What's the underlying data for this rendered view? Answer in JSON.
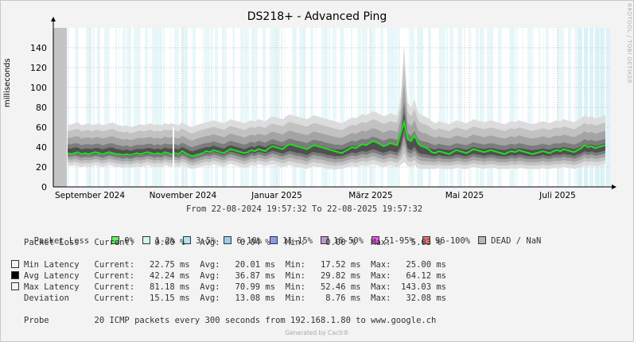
{
  "title": "DS218+ - Advanced Ping",
  "watermark": "RRDTOOL / TOBI OETIKER",
  "footer": "Generated by Cacti®",
  "date_range": "From 22-08-2024 19:57:32 To 22-08-2025 19:57:32",
  "chart_data": {
    "type": "area",
    "ylabel": "milliseconds",
    "ylim": [
      0,
      160
    ],
    "yticks": [
      0,
      20,
      40,
      60,
      80,
      100,
      120,
      140
    ],
    "xticks": [
      "September 2024",
      "November 2024",
      "Januar 2025",
      "März 2025",
      "Mai 2025",
      "Juli 2025"
    ],
    "grid": true,
    "series": [
      {
        "name": "Avg Latency",
        "color": "#22dd22",
        "values": [
          34,
          33,
          34,
          35,
          33,
          34,
          33,
          34,
          35,
          34,
          33,
          34,
          35,
          34,
          33,
          33,
          32,
          33,
          32,
          33,
          34,
          33,
          34,
          35,
          34,
          33,
          34,
          33,
          35,
          34,
          33,
          34,
          33,
          36,
          34,
          32,
          31,
          32,
          33,
          34,
          36,
          35,
          37,
          36,
          35,
          34,
          36,
          38,
          37,
          36,
          35,
          34,
          35,
          37,
          36,
          38,
          37,
          36,
          39,
          41,
          40,
          39,
          38,
          41,
          43,
          42,
          41,
          40,
          39,
          38,
          40,
          42,
          41,
          40,
          39,
          38,
          37,
          36,
          35,
          34,
          36,
          38,
          40,
          39,
          41,
          43,
          42,
          44,
          46,
          45,
          43,
          41,
          42,
          44,
          43,
          42,
          54,
          65,
          48,
          46,
          52,
          44,
          41,
          40,
          38,
          35,
          34,
          36,
          35,
          34,
          33,
          35,
          37,
          36,
          35,
          34,
          36,
          38,
          37,
          36,
          35,
          36,
          37,
          36,
          35,
          34,
          33,
          35,
          36,
          35,
          37,
          36,
          35,
          34,
          33,
          34,
          35,
          36,
          35,
          34,
          36,
          37,
          36,
          38,
          37,
          36,
          35,
          37,
          39,
          42,
          40,
          41,
          39,
          40,
          41,
          42
        ]
      },
      {
        "name": "Max Latency",
        "color": "#111111",
        "values": [
          62,
          63,
          64,
          65,
          62,
          63,
          64,
          62,
          63,
          64,
          62,
          63,
          64,
          65,
          63,
          62,
          61,
          62,
          60,
          61,
          62,
          63,
          62,
          63,
          64,
          62,
          63,
          62,
          64,
          63,
          64,
          63,
          62,
          65,
          63,
          61,
          60,
          62,
          63,
          64,
          65,
          66,
          67,
          66,
          65,
          64,
          66,
          68,
          67,
          66,
          65,
          64,
          66,
          67,
          66,
          68,
          67,
          66,
          69,
          71,
          70,
          69,
          68,
          71,
          73,
          72,
          71,
          70,
          69,
          68,
          70,
          72,
          71,
          70,
          69,
          68,
          67,
          66,
          65,
          64,
          66,
          68,
          70,
          69,
          71,
          73,
          72,
          74,
          76,
          75,
          73,
          71,
          72,
          74,
          73,
          72,
          90,
          143,
          85,
          80,
          88,
          75,
          72,
          71,
          69,
          66,
          64,
          66,
          65,
          64,
          63,
          65,
          67,
          66,
          65,
          64,
          66,
          68,
          67,
          66,
          65,
          66,
          67,
          66,
          65,
          64,
          63,
          65,
          66,
          65,
          67,
          66,
          65,
          64,
          63,
          64,
          65,
          66,
          65,
          64,
          66,
          67,
          66,
          68,
          67,
          66,
          65,
          67,
          69,
          72,
          70,
          71,
          69,
          70,
          71,
          72
        ]
      },
      {
        "name": "Min Latency",
        "color": "#dddddd",
        "values": [
          22,
          21,
          22,
          21,
          20,
          21,
          20,
          21,
          22,
          21,
          20,
          21,
          22,
          21,
          20,
          20,
          19,
          20,
          19,
          20,
          21,
          20,
          21,
          22,
          21,
          20,
          21,
          20,
          22,
          21,
          20,
          21,
          20,
          22,
          21,
          19,
          18,
          19,
          20,
          21,
          22,
          21,
          23,
          22,
          21,
          20,
          22,
          23,
          22,
          21,
          20,
          19,
          20,
          22,
          21,
          23,
          22,
          21,
          22,
          23,
          22,
          21,
          20,
          21,
          22,
          21,
          20,
          20,
          19,
          18,
          20,
          21,
          20,
          20,
          19,
          18,
          18,
          17,
          18,
          18,
          19,
          20,
          21,
          20,
          21,
          22,
          21,
          22,
          23,
          22,
          21,
          20,
          21,
          22,
          21,
          20,
          22,
          25,
          21,
          20,
          22,
          19,
          18,
          18,
          18,
          18,
          18,
          19,
          18,
          18,
          18,
          18,
          19,
          19,
          18,
          18,
          19,
          20,
          19,
          19,
          18,
          19,
          19,
          19,
          18,
          18,
          18,
          18,
          19,
          18,
          19,
          19,
          18,
          18,
          18,
          18,
          18,
          19,
          18,
          18,
          19,
          19,
          19,
          20,
          19,
          19,
          18,
          19,
          20,
          22,
          21,
          22,
          21,
          21,
          22,
          23
        ]
      }
    ]
  },
  "legend": {
    "packet_loss_label": "Packet Loss",
    "buckets": [
      {
        "label": "0%",
        "color": "#66ee66"
      },
      {
        "label": "1-2%",
        "color": "#ccf5f5"
      },
      {
        "label": "3-5%",
        "color": "#a8e8ee"
      },
      {
        "label": "6-10%",
        "color": "#99ccee"
      },
      {
        "label": "11-15%",
        "color": "#8899ee"
      },
      {
        "label": "16-50%",
        "color": "#bb99cc"
      },
      {
        "label": "51-95%",
        "color": "#ee55ee"
      },
      {
        "label": "96-100%",
        "color": "#ee7777"
      },
      {
        "label": "DEAD / NaN",
        "color": "#b0b8b0"
      }
    ],
    "packet_loss_row": "Packet Loss   Current:    0.00 %   Avg:    0.04 %   Min:    0.00 %   Max:    5.03 %",
    "rows": [
      {
        "swatch": "#f4f4f4",
        "text": "Min Latency   Current:   22.75 ms  Avg:   20.01 ms  Min:   17.52 ms  Max:   25.00 ms"
      },
      {
        "swatch": "#000000",
        "text": "Avg Latency   Current:   42.24 ms  Avg:   36.87 ms  Min:   29.82 ms  Max:   64.12 ms"
      },
      {
        "swatch": "#f4f4f4",
        "text": "Max Latency   Current:   81.18 ms  Avg:   70.99 ms  Min:   52.46 ms  Max:  143.03 ms"
      },
      {
        "swatch": null,
        "text": "Deviation     Current:   15.15 ms  Avg:   13.08 ms  Min:    8.76 ms  Max:   32.08 ms"
      }
    ],
    "probe": "Probe         20 ICMP packets every 300 seconds from 192.168.1.80 to www.google.ch"
  }
}
